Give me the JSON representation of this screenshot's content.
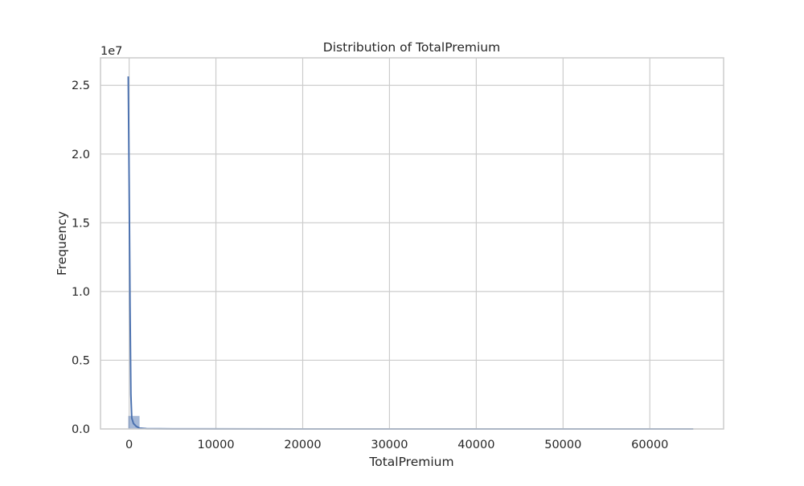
{
  "chart_data": {
    "type": "histogram",
    "title": "Distribution of TotalPremium",
    "xlabel": "TotalPremium",
    "ylabel": "Frequency",
    "y_offset_label": "1e7",
    "xlim": [
      -3300,
      68500
    ],
    "ylim": [
      0,
      27000000
    ],
    "x_ticks": [
      0,
      10000,
      20000,
      30000,
      40000,
      50000,
      60000
    ],
    "x_tick_labels": [
      "0",
      "10000",
      "20000",
      "30000",
      "40000",
      "50000",
      "60000"
    ],
    "y_ticks": [
      0,
      5000000,
      10000000,
      15000000,
      20000000,
      25000000
    ],
    "y_tick_labels": [
      "0.0",
      "0.5",
      "1.0",
      "1.5",
      "2.0",
      "2.5"
    ],
    "grid": true,
    "bins": [
      {
        "x0": -100,
        "x1": 1200,
        "count": 950000
      }
    ],
    "kde": {
      "x": [
        -100,
        0,
        100,
        200,
        300,
        500,
        800,
        1200,
        2000,
        5000,
        20000,
        65000
      ],
      "y": [
        25650000,
        18000000,
        9000000,
        2500000,
        800000,
        400000,
        200000,
        60000,
        20000,
        5000,
        1000,
        0
      ]
    },
    "colors": {
      "bar_fill": "#4c72b0",
      "bar_fill_opacity": 0.5,
      "kde_line": "#4c72b0",
      "grid": "#cccccc",
      "frame": "#cccccc"
    }
  }
}
